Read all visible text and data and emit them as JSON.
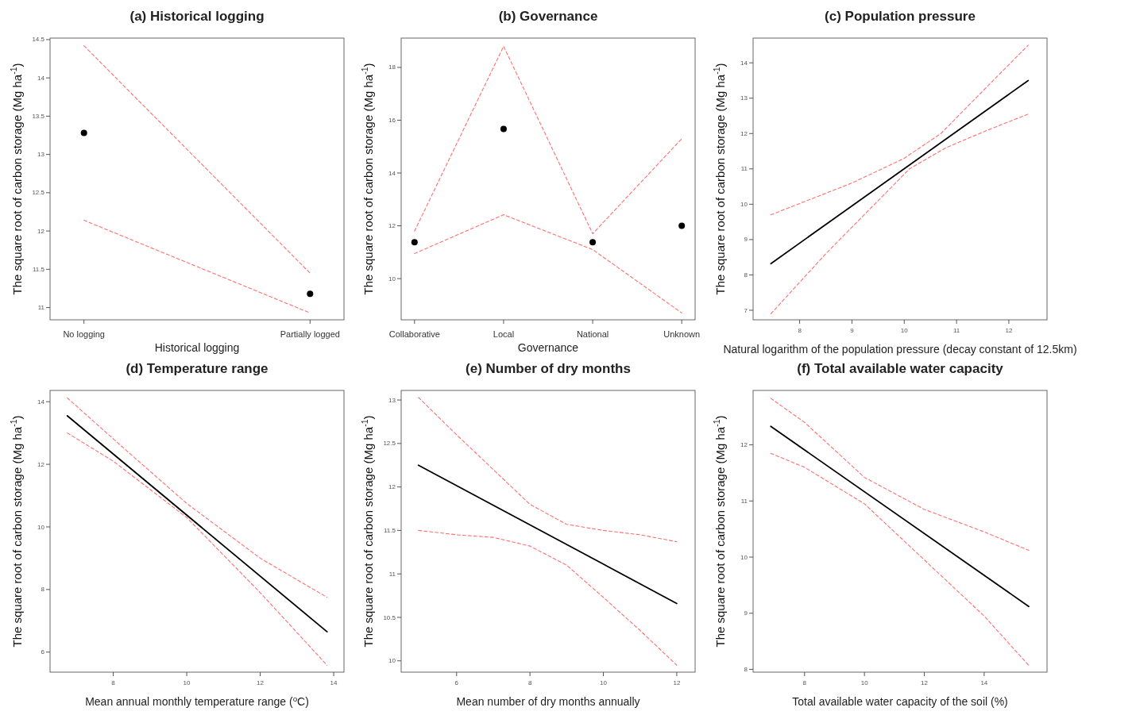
{
  "chart_data": [
    {
      "type": "line",
      "title": "(a)  Historical logging",
      "xlabel": "Historical logging",
      "ylabel": "The square root of carbon storage (Mg ha$^{-1}$)",
      "categories": [
        "No logging",
        "Partially logged"
      ],
      "ylim": [
        10.84,
        14.52
      ],
      "yticks": [
        11,
        11.5,
        12,
        12.5,
        13,
        13.5,
        14,
        14.5
      ],
      "series": [
        {
          "type": "scatter",
          "marker": "circle",
          "color": "#000000",
          "values": [
            13.28,
            11.18
          ]
        },
        {
          "type": "line",
          "line_style": "dashed",
          "color": "#ff6f6f",
          "values": [
            14.42,
            11.45
          ]
        },
        {
          "type": "line",
          "line_style": "dashed",
          "color": "#ff6f6f",
          "values": [
            12.14,
            10.93
          ]
        }
      ]
    },
    {
      "type": "line",
      "title": "(b)  Governance",
      "xlabel": "Governance",
      "ylabel": "The square root of carbon storage (Mg ha$^{-1}$)",
      "categories": [
        "Collaborative",
        "Local",
        "National",
        "Unknown"
      ],
      "ylim": [
        8.44,
        19.11
      ],
      "yticks": [
        10,
        12,
        14,
        16,
        18
      ],
      "series": [
        {
          "type": "scatter",
          "marker": "circle",
          "color": "#000000",
          "values": [
            11.38,
            15.67,
            11.38,
            12.0
          ]
        },
        {
          "type": "line",
          "line_style": "dashed",
          "color": "#ff6f6f",
          "values": [
            11.8,
            18.8,
            11.7,
            15.3
          ]
        },
        {
          "type": "line",
          "line_style": "dashed",
          "color": "#ff6f6f",
          "values": [
            10.95,
            12.42,
            11.1,
            8.7
          ]
        }
      ]
    },
    {
      "type": "line",
      "title": "(c)  Population pressure",
      "xlabel": "Natural logarithm of the population pressure (decay constant of 12.5km)",
      "ylabel": "The square root of carbon storage (Mg ha$^{-1}$)",
      "xlim": [
        7.11,
        12.73
      ],
      "xticks": [
        8,
        9,
        10,
        11,
        12
      ],
      "ylim": [
        6.73,
        14.7
      ],
      "yticks": [
        7,
        8,
        9,
        10,
        11,
        12,
        13,
        14
      ],
      "series": [
        {
          "line_style": "solid",
          "color": "#000000",
          "x": [
            7.45,
            12.37
          ],
          "values": [
            8.32,
            13.5
          ]
        },
        {
          "line_style": "dashed",
          "color": "#ff6f6f",
          "x": [
            7.45,
            9,
            10,
            10.7,
            11.5,
            12.37
          ],
          "values": [
            9.7,
            10.6,
            11.3,
            12.0,
            13.2,
            14.5
          ]
        },
        {
          "line_style": "dashed",
          "color": "#ff6f6f",
          "x": [
            7.45,
            8.5,
            9.5,
            10.1,
            10.8,
            11.6,
            12.37
          ],
          "values": [
            6.9,
            8.6,
            10.1,
            11.0,
            11.6,
            12.1,
            12.55
          ]
        }
      ]
    },
    {
      "type": "line",
      "title": "(d)  Temperature range",
      "xlabel": "Mean annual monthly temperature range ($^{o}$C)",
      "ylabel": "The square root of carbon storage (Mg ha$^{-1}$)",
      "xlim": [
        6.28,
        14.28
      ],
      "xticks": [
        8,
        10,
        12,
        14
      ],
      "ylim": [
        5.36,
        14.36
      ],
      "yticks": [
        6,
        8,
        10,
        12,
        14
      ],
      "series": [
        {
          "line_style": "solid",
          "color": "#000000",
          "x": [
            6.75,
            13.82
          ],
          "values": [
            13.55,
            6.65
          ]
        },
        {
          "line_style": "dashed",
          "color": "#ff6f6f",
          "x": [
            6.75,
            8.3,
            10,
            12,
            13.82
          ],
          "values": [
            14.12,
            12.5,
            10.75,
            9.0,
            7.75
          ]
        },
        {
          "line_style": "dashed",
          "color": "#ff6f6f",
          "x": [
            6.75,
            8,
            10,
            12,
            13.82
          ],
          "values": [
            13.0,
            12.1,
            10.3,
            7.9,
            5.58
          ]
        }
      ]
    },
    {
      "type": "line",
      "title": "(e)  Number of dry months",
      "xlabel": "Mean number of dry months annually",
      "ylabel": "The square root of carbon storage (Mg ha$^{-1}$)",
      "xlim": [
        4.49,
        12.5
      ],
      "xticks": [
        6,
        8,
        10,
        12
      ],
      "ylim": [
        9.87,
        13.11
      ],
      "yticks": [
        10,
        10.5,
        11,
        11.5,
        12,
        12.5,
        13
      ],
      "series": [
        {
          "line_style": "solid",
          "color": "#000000",
          "x": [
            4.96,
            12
          ],
          "values": [
            12.25,
            10.66
          ]
        },
        {
          "line_style": "dashed",
          "color": "#ff6f6f",
          "x": [
            4.96,
            6,
            7,
            8,
            9,
            10,
            11,
            12
          ],
          "values": [
            13.03,
            12.6,
            12.2,
            11.8,
            11.57,
            11.5,
            11.45,
            11.37
          ]
        },
        {
          "line_style": "dashed",
          "color": "#ff6f6f",
          "x": [
            4.96,
            6,
            7,
            8,
            9,
            10,
            11,
            12
          ],
          "values": [
            11.5,
            11.45,
            11.42,
            11.32,
            11.1,
            10.73,
            10.35,
            9.95
          ]
        }
      ]
    },
    {
      "type": "line",
      "title": "(f)  Total available water capacity",
      "xlabel": "Total available water capacity of the soil (%)",
      "ylabel": "The square root of carbon storage (Mg ha$^{-1}$)",
      "xlim": [
        6.28,
        16.1
      ],
      "xticks": [
        8,
        10,
        12,
        14
      ],
      "ylim": [
        7.95,
        12.97
      ],
      "yticks": [
        8,
        9,
        10,
        11,
        12
      ],
      "series": [
        {
          "line_style": "solid",
          "color": "#000000",
          "x": [
            6.87,
            15.49
          ],
          "values": [
            12.33,
            9.12
          ]
        },
        {
          "line_style": "dashed",
          "color": "#ff6f6f",
          "x": [
            6.87,
            8,
            10,
            12,
            14,
            15.49
          ],
          "values": [
            12.83,
            12.4,
            11.42,
            10.85,
            10.45,
            10.12
          ]
        },
        {
          "line_style": "dashed",
          "color": "#ff6f6f",
          "x": [
            6.87,
            8,
            10,
            12,
            14,
            15.49
          ],
          "values": [
            11.85,
            11.6,
            10.95,
            9.95,
            8.95,
            8.07
          ]
        }
      ]
    }
  ]
}
